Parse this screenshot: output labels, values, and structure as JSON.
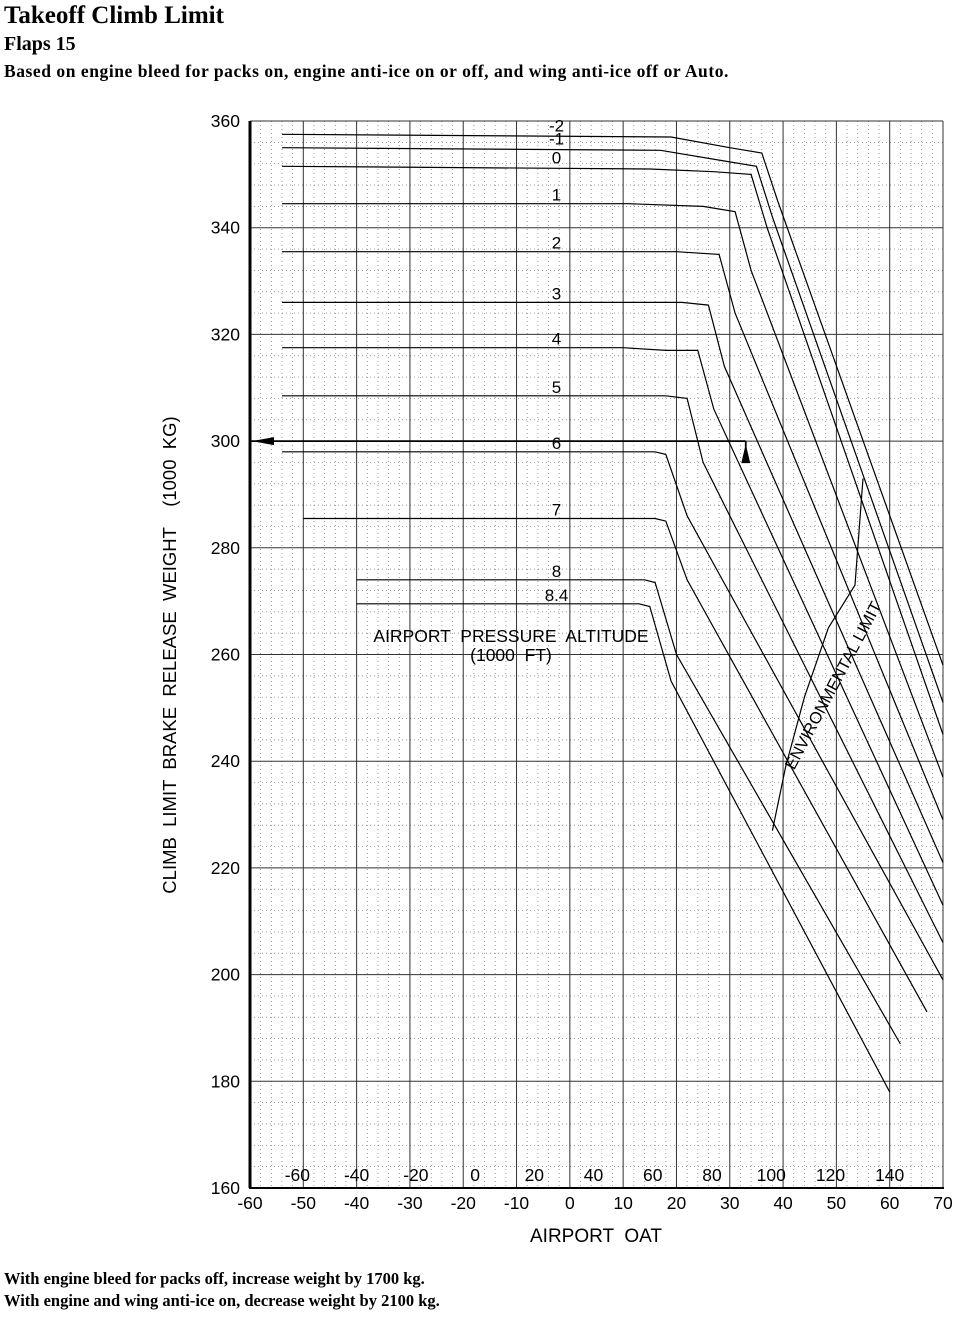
{
  "header": {
    "title": "Takeoff Climb Limit",
    "subtitle": "Flaps 15",
    "description": "Based on engine bleed for packs on, engine anti-ice on or off, and wing anti-ice off or Auto."
  },
  "notes": [
    "With engine bleed for packs off, increase weight by 1700 kg.",
    "With engine and wing anti-ice on, decrease weight by 2100 kg."
  ],
  "chart_data": {
    "type": "line",
    "title": "Takeoff Climb Limit",
    "xlabel": "AIRPORT  OAT",
    "ylabel": "CLIMB  LIMIT  BRAKE  RELEASE  WEIGHT    (1000  KG)",
    "xlim": [
      -60,
      70
    ],
    "ylim": [
      160,
      360
    ],
    "x_ticks": [
      "-60",
      "-50",
      "-40",
      "-30",
      "-20",
      "-10",
      "0",
      "10",
      "20",
      "30",
      "40",
      "50",
      "60",
      "70"
    ],
    "x_ticks_fahrenheit": [
      "-60",
      "-40",
      "-20",
      "0",
      "20",
      "40",
      "60",
      "80",
      "100",
      "120",
      "140"
    ],
    "y_ticks": [
      "160",
      "180",
      "200",
      "220",
      "240",
      "260",
      "280",
      "300",
      "320",
      "340",
      "360"
    ],
    "grid": true,
    "annotation": "AIRPORT  PRESSURE  ALTITUDE",
    "annotation_unit": "(1000  FT)",
    "environmental_limit_label": "ENVIRONMENTAL LIMIT",
    "series": [
      {
        "name": "-2",
        "x": [
          -54,
          19,
          30,
          36,
          39,
          70
        ],
        "y": [
          357.5,
          357,
          355,
          354,
          345,
          258
        ]
      },
      {
        "name": "-1",
        "x": [
          -54,
          17,
          29,
          35,
          38,
          70
        ],
        "y": [
          355,
          354.5,
          352.5,
          351.5,
          342,
          251
        ]
      },
      {
        "name": "0",
        "x": [
          -54,
          15,
          27,
          34,
          37,
          70
        ],
        "y": [
          351.5,
          351,
          350.5,
          350,
          340,
          245
        ]
      },
      {
        "name": "1",
        "x": [
          -54,
          11,
          25,
          31,
          34,
          70
        ],
        "y": [
          344.5,
          344.5,
          344,
          343,
          332,
          237
        ]
      },
      {
        "name": "2",
        "x": [
          -54,
          10,
          20,
          28,
          31,
          70
        ],
        "y": [
          335.5,
          335.5,
          335.5,
          335,
          324,
          229
        ]
      },
      {
        "name": "3",
        "x": [
          -54,
          10,
          21,
          26,
          29,
          70
        ],
        "y": [
          326,
          326,
          326,
          325.5,
          314,
          221
        ]
      },
      {
        "name": "4",
        "x": [
          -54,
          10,
          18,
          24,
          27,
          70
        ],
        "y": [
          317.5,
          317.5,
          317,
          317,
          306,
          213
        ]
      },
      {
        "name": "5",
        "x": [
          -54,
          10,
          18,
          22,
          25,
          70
        ],
        "y": [
          308.5,
          308.5,
          308.5,
          308,
          296,
          206
        ]
      },
      {
        "name": "6",
        "x": [
          -54,
          10,
          16,
          18,
          22,
          70
        ],
        "y": [
          298,
          298,
          298,
          297.5,
          286,
          199
        ]
      },
      {
        "name": "7",
        "x": [
          -50,
          10,
          16,
          18,
          22,
          67
        ],
        "y": [
          285.5,
          285.5,
          285.5,
          285,
          274,
          193
        ]
      },
      {
        "name": "8",
        "x": [
          -40,
          6,
          14,
          16,
          20,
          62
        ],
        "y": [
          274,
          274,
          274,
          273.5,
          260,
          187
        ]
      },
      {
        "name": "8.4",
        "x": [
          -40,
          6,
          13,
          15,
          19,
          60
        ],
        "y": [
          269.5,
          269.5,
          269.5,
          269,
          255,
          178
        ]
      }
    ],
    "example_lines": [
      {
        "x": [
          -60,
          33
        ],
        "y": [
          300,
          300
        ]
      },
      {
        "x": [
          33,
          33
        ],
        "y": [
          300,
          297
        ]
      }
    ]
  }
}
